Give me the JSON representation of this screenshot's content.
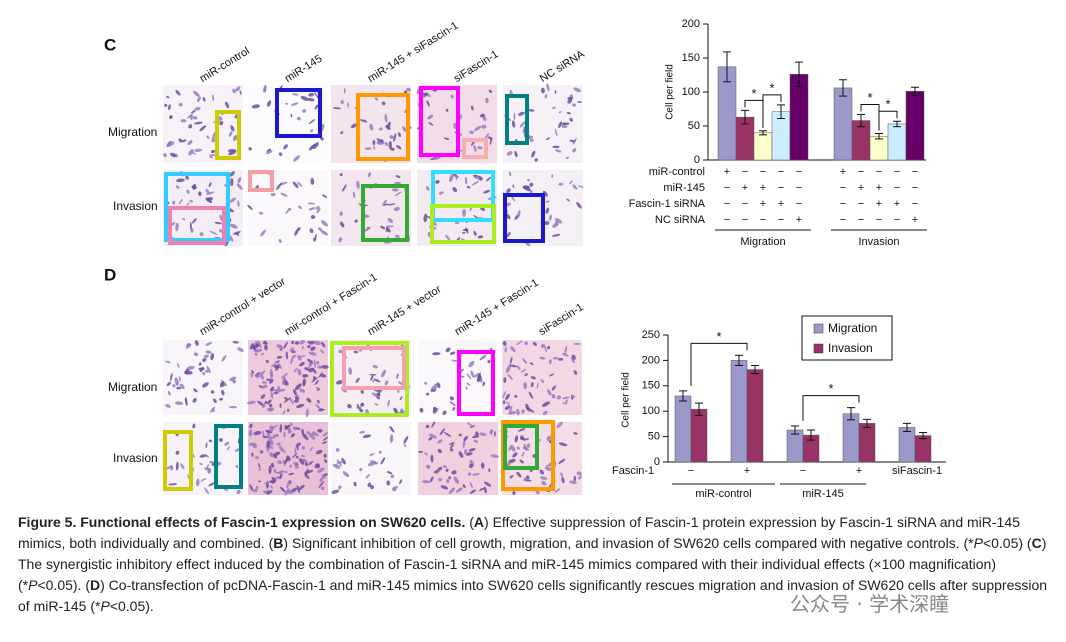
{
  "panels": {
    "C": {
      "label": "C",
      "columns": [
        "miR-control",
        "miR-145",
        "miR-145 + siFascin-1",
        "siFascin-1",
        "NC siRNA"
      ],
      "rows": [
        "Migration",
        "Invasion"
      ]
    },
    "D": {
      "label": "D",
      "columns": [
        "miR-control + vector",
        "mir-control + Fascin-1",
        "miR-145 + vector",
        "miR-145 + Fascin-1",
        "siFascin-1"
      ],
      "rows": [
        "Migration",
        "Invasion"
      ]
    }
  },
  "chart_data": [
    {
      "type": "bar",
      "ylabel": "Cell per field",
      "ylim": [
        0,
        200
      ],
      "yticks": [
        0,
        50,
        100,
        150,
        200
      ],
      "colors": [
        "#9b99cc",
        "#993366",
        "#ffffcc",
        "#cceeff",
        "#660066"
      ],
      "groups": [
        {
          "name": "Migration",
          "values": [
            137,
            63,
            40,
            71,
            126
          ],
          "errors": [
            22,
            10,
            3,
            10,
            18
          ],
          "significance": [
            "*",
            "*"
          ]
        },
        {
          "name": "Invasion",
          "values": [
            106,
            58,
            35,
            53,
            101
          ],
          "errors": [
            12,
            9,
            4,
            4,
            6
          ],
          "significance": [
            "*",
            "*"
          ]
        }
      ],
      "conditions": [
        {
          "label": "miR-control",
          "signs": [
            "+",
            "−",
            "−",
            "−",
            "−"
          ]
        },
        {
          "label": "miR-145",
          "signs": [
            "−",
            "+",
            "+",
            "−",
            "−"
          ]
        },
        {
          "label": "Fascin-1 siRNA",
          "signs": [
            "−",
            "−",
            "+",
            "+",
            "−"
          ]
        },
        {
          "label": "NC siRNA",
          "signs": [
            "−",
            "−",
            "−",
            "−",
            "+"
          ]
        }
      ]
    },
    {
      "type": "grouped-bar",
      "ylabel": "Cell per field",
      "ylim": [
        0,
        250
      ],
      "yticks": [
        0,
        50,
        100,
        150,
        200,
        250
      ],
      "category_label": "Fascin-1",
      "categories": [
        "−",
        "+",
        "−",
        "+",
        "siFascin-1"
      ],
      "groups": [
        {
          "name": "miR-control"
        },
        {
          "name": "miR-145"
        }
      ],
      "series": [
        {
          "name": "Migration",
          "color": "#9b99cc",
          "values": [
            130,
            200,
            63,
            95,
            68
          ],
          "errors": [
            10,
            10,
            8,
            12,
            8
          ]
        },
        {
          "name": "Invasion",
          "color": "#993366",
          "values": [
            104,
            182,
            53,
            76,
            52
          ],
          "errors": [
            12,
            8,
            10,
            8,
            6
          ]
        }
      ],
      "significance": [
        "*",
        "*"
      ],
      "legend": "upper right"
    }
  ],
  "caption": [
    "Figure 5. Functional effects of Fascin-1 expression on SW620 cells.",
    " (",
    "A",
    ") Effective suppression of Fascin-1 protein expression by Fascin-1 siRNA and miR-145 mimics, both individually and combined. (",
    "B",
    ") Significant inhibition of cell growth, migration, and invasion of SW620 cells compared with negative controls. (*",
    "P",
    "<0.05) (",
    "C",
    ") The synergistic inhibitory effect induced by the combination of Fascin-1 siRNA and miR-145 mimics compared with their individual effects (×100 magnification) (*",
    "P",
    "<0.05). (",
    "D",
    ") Co-transfection of pcDNA-Fascin-1 and miR-145 mimics into SW620 cells significantly rescues migration and invasion of SW620 cells after suppression of miR-145 (*",
    "P",
    "<0.05)."
  ],
  "watermark": "公众号 · 学术深瞳"
}
